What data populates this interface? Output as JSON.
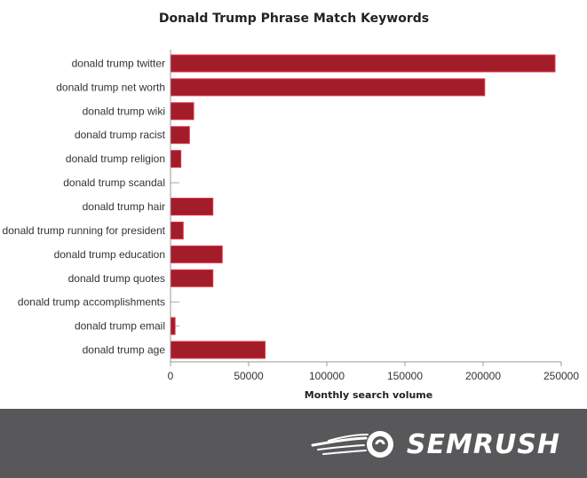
{
  "chart_data": {
    "type": "bar",
    "orientation": "horizontal",
    "title": "Donald Trump Phrase Match Keywords",
    "xlabel": "Monthly search volume",
    "ylabel": "",
    "xlim": [
      0,
      250000
    ],
    "xticks": [
      0,
      50000,
      100000,
      150000,
      200000,
      250000
    ],
    "grid": false,
    "bar_color": "#a31c2a",
    "categories": [
      "donald trump twitter",
      "donald trump net worth",
      "donald trump wiki",
      "donald trump racist",
      "donald trump religion",
      "donald trump scandal",
      "donald trump hair",
      "is donald trump running for president",
      "donald trump education",
      "donald trump quotes",
      "donald trump accomplishments",
      "donald trump email",
      "donald trump age"
    ],
    "values": [
      246000,
      201000,
      14800,
      12100,
      6600,
      0,
      27100,
      8100,
      33100,
      27100,
      0,
      2900,
      60500
    ]
  },
  "footer": {
    "brand": "SEMRUSH",
    "background": "#58585a",
    "logo_icon": "semrush-fireball-icon"
  }
}
